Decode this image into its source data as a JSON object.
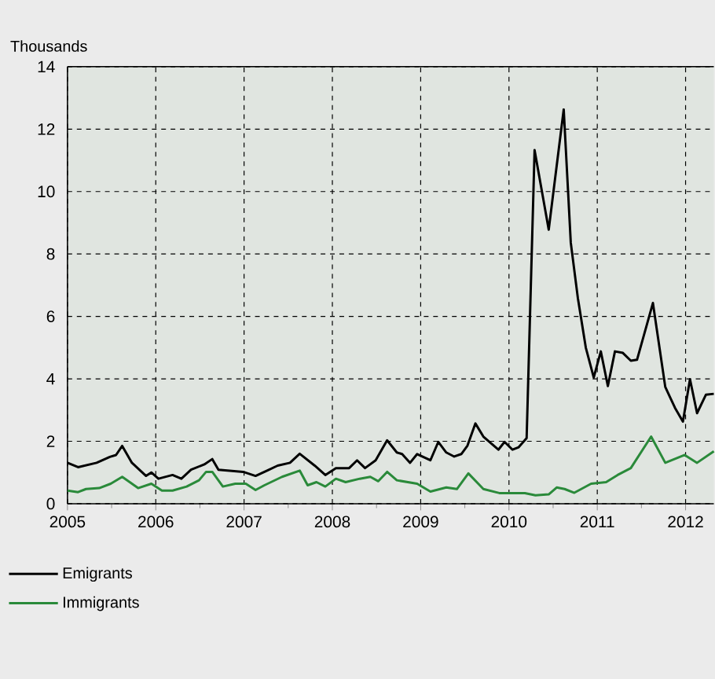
{
  "chart_data": {
    "type": "line",
    "ylabel": "Thousands",
    "xlim": [
      2005,
      2012.32
    ],
    "ylim": [
      0,
      14
    ],
    "xticks": [
      2005,
      2006,
      2007,
      2008,
      2009,
      2010,
      2011,
      2012
    ],
    "yticks": [
      0,
      2,
      4,
      6,
      8,
      10,
      12,
      14
    ],
    "grid": true,
    "legend": "bottom left",
    "line_style": "solid",
    "marker": "none",
    "series": [
      {
        "name": "Emigrants",
        "color": "#000000",
        "x": [
          2005.0,
          2005.12,
          2005.33,
          2005.48,
          2005.55,
          2005.62,
          2005.73,
          2005.89,
          2005.95,
          2006.03,
          2006.19,
          2006.29,
          2006.4,
          2006.55,
          2006.64,
          2006.71,
          2006.99,
          2007.13,
          2007.26,
          2007.38,
          2007.52,
          2007.63,
          2007.8,
          2007.92,
          2008.04,
          2008.19,
          2008.28,
          2008.37,
          2008.49,
          2008.62,
          2008.73,
          2008.79,
          2008.88,
          2008.96,
          2009.11,
          2009.2,
          2009.29,
          2009.38,
          2009.46,
          2009.53,
          2009.62,
          2009.71,
          2009.88,
          2009.95,
          2010.04,
          2010.11,
          2010.2,
          2010.29,
          2010.45,
          2010.62,
          2010.7,
          2010.78,
          2010.87,
          2010.96,
          2011.04,
          2011.12,
          2011.2,
          2011.29,
          2011.38,
          2011.45,
          2011.63,
          2011.77,
          2011.88,
          2011.97,
          2012.05,
          2012.13,
          2012.23,
          2012.32
        ],
        "values": [
          1.31,
          1.17,
          1.31,
          1.5,
          1.56,
          1.85,
          1.31,
          0.89,
          1.0,
          0.8,
          0.92,
          0.8,
          1.09,
          1.26,
          1.43,
          1.09,
          1.02,
          0.89,
          1.06,
          1.22,
          1.31,
          1.6,
          1.22,
          0.92,
          1.14,
          1.14,
          1.39,
          1.14,
          1.39,
          2.03,
          1.64,
          1.59,
          1.31,
          1.59,
          1.39,
          1.98,
          1.64,
          1.51,
          1.59,
          1.86,
          2.57,
          2.15,
          1.73,
          1.98,
          1.73,
          1.81,
          2.1,
          11.33,
          8.78,
          12.63,
          8.36,
          6.59,
          5.0,
          4.04,
          4.88,
          3.77,
          4.88,
          4.83,
          4.58,
          4.61,
          6.43,
          3.74,
          3.07,
          2.63,
          3.99,
          2.9,
          3.49,
          3.52
        ]
      },
      {
        "name": "Immigrants",
        "color": "#2a8a3a",
        "x": [
          2005.0,
          2005.12,
          2005.21,
          2005.36,
          2005.49,
          2005.62,
          2005.8,
          2005.95,
          2006.07,
          2006.19,
          2006.35,
          2006.49,
          2006.57,
          2006.64,
          2006.76,
          2006.9,
          2007.02,
          2007.13,
          2007.23,
          2007.43,
          2007.63,
          2007.72,
          2007.82,
          2007.92,
          2008.04,
          2008.15,
          2008.31,
          2008.43,
          2008.52,
          2008.62,
          2008.73,
          2008.96,
          2009.11,
          2009.29,
          2009.41,
          2009.54,
          2009.71,
          2009.89,
          2010.18,
          2010.3,
          2010.45,
          2010.54,
          2010.63,
          2010.74,
          2010.93,
          2011.1,
          2011.23,
          2011.38,
          2011.61,
          2011.77,
          2011.99,
          2012.13,
          2012.32
        ],
        "values": [
          0.42,
          0.37,
          0.47,
          0.5,
          0.64,
          0.86,
          0.5,
          0.64,
          0.42,
          0.42,
          0.55,
          0.75,
          1.02,
          1.02,
          0.55,
          0.64,
          0.64,
          0.44,
          0.59,
          0.86,
          1.06,
          0.59,
          0.69,
          0.55,
          0.8,
          0.69,
          0.8,
          0.86,
          0.72,
          1.02,
          0.75,
          0.64,
          0.39,
          0.52,
          0.47,
          0.97,
          0.47,
          0.34,
          0.34,
          0.27,
          0.3,
          0.52,
          0.47,
          0.35,
          0.64,
          0.69,
          0.92,
          1.14,
          2.15,
          1.31,
          1.56,
          1.31,
          1.68
        ]
      }
    ]
  }
}
